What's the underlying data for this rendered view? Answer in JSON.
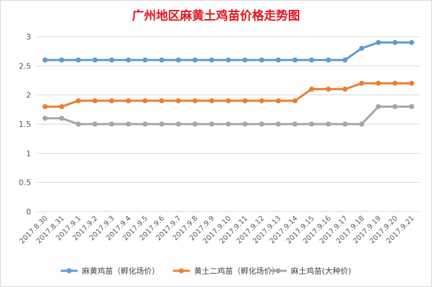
{
  "chart_data": {
    "type": "line",
    "title": "广州地区麻黄土鸡苗价格走势图",
    "xlabel": "",
    "ylabel": "",
    "ylim": [
      0,
      3
    ],
    "yticks": [
      "0",
      "0.5",
      "1",
      "1.5",
      "2",
      "2.5",
      "3"
    ],
    "grid": true,
    "legend_position": "bottom",
    "categories": [
      "2017.8.30",
      "2017.8.31",
      "2017.9.1",
      "2017.9.2",
      "2017.9.3",
      "2017.9.4",
      "2017.9.5",
      "2017.9.6",
      "2017.9.7",
      "2017.9.8",
      "2017.9.9",
      "2017.9.10",
      "2017.9.11",
      "2017.9.12",
      "2017.9.13",
      "2017.9.14",
      "2017.9.15",
      "2017.9.16",
      "2017.9.17",
      "2017.9.18",
      "2017.9.19",
      "2017.9.20",
      "2017.9.21"
    ],
    "series": [
      {
        "name": "麻黄鸡苗（孵化场价）",
        "color": "#5b9bd5",
        "values": [
          2.6,
          2.6,
          2.6,
          2.6,
          2.6,
          2.6,
          2.6,
          2.6,
          2.6,
          2.6,
          2.6,
          2.6,
          2.6,
          2.6,
          2.6,
          2.6,
          2.6,
          2.6,
          2.6,
          2.8,
          2.9,
          2.9,
          2.9
        ]
      },
      {
        "name": "黄土二鸡苗（孵化场价）",
        "color": "#ed7d31",
        "values": [
          1.8,
          1.8,
          1.9,
          1.9,
          1.9,
          1.9,
          1.9,
          1.9,
          1.9,
          1.9,
          1.9,
          1.9,
          1.9,
          1.9,
          1.9,
          1.9,
          2.1,
          2.1,
          2.1,
          2.2,
          2.2,
          2.2,
          2.2
        ]
      },
      {
        "name": "麻土鸡苗(大种价)",
        "color": "#a5a5a5",
        "values": [
          1.6,
          1.6,
          1.5,
          1.5,
          1.5,
          1.5,
          1.5,
          1.5,
          1.5,
          1.5,
          1.5,
          1.5,
          1.5,
          1.5,
          1.5,
          1.5,
          1.5,
          1.5,
          1.5,
          1.5,
          1.8,
          1.8,
          1.8
        ]
      }
    ]
  }
}
